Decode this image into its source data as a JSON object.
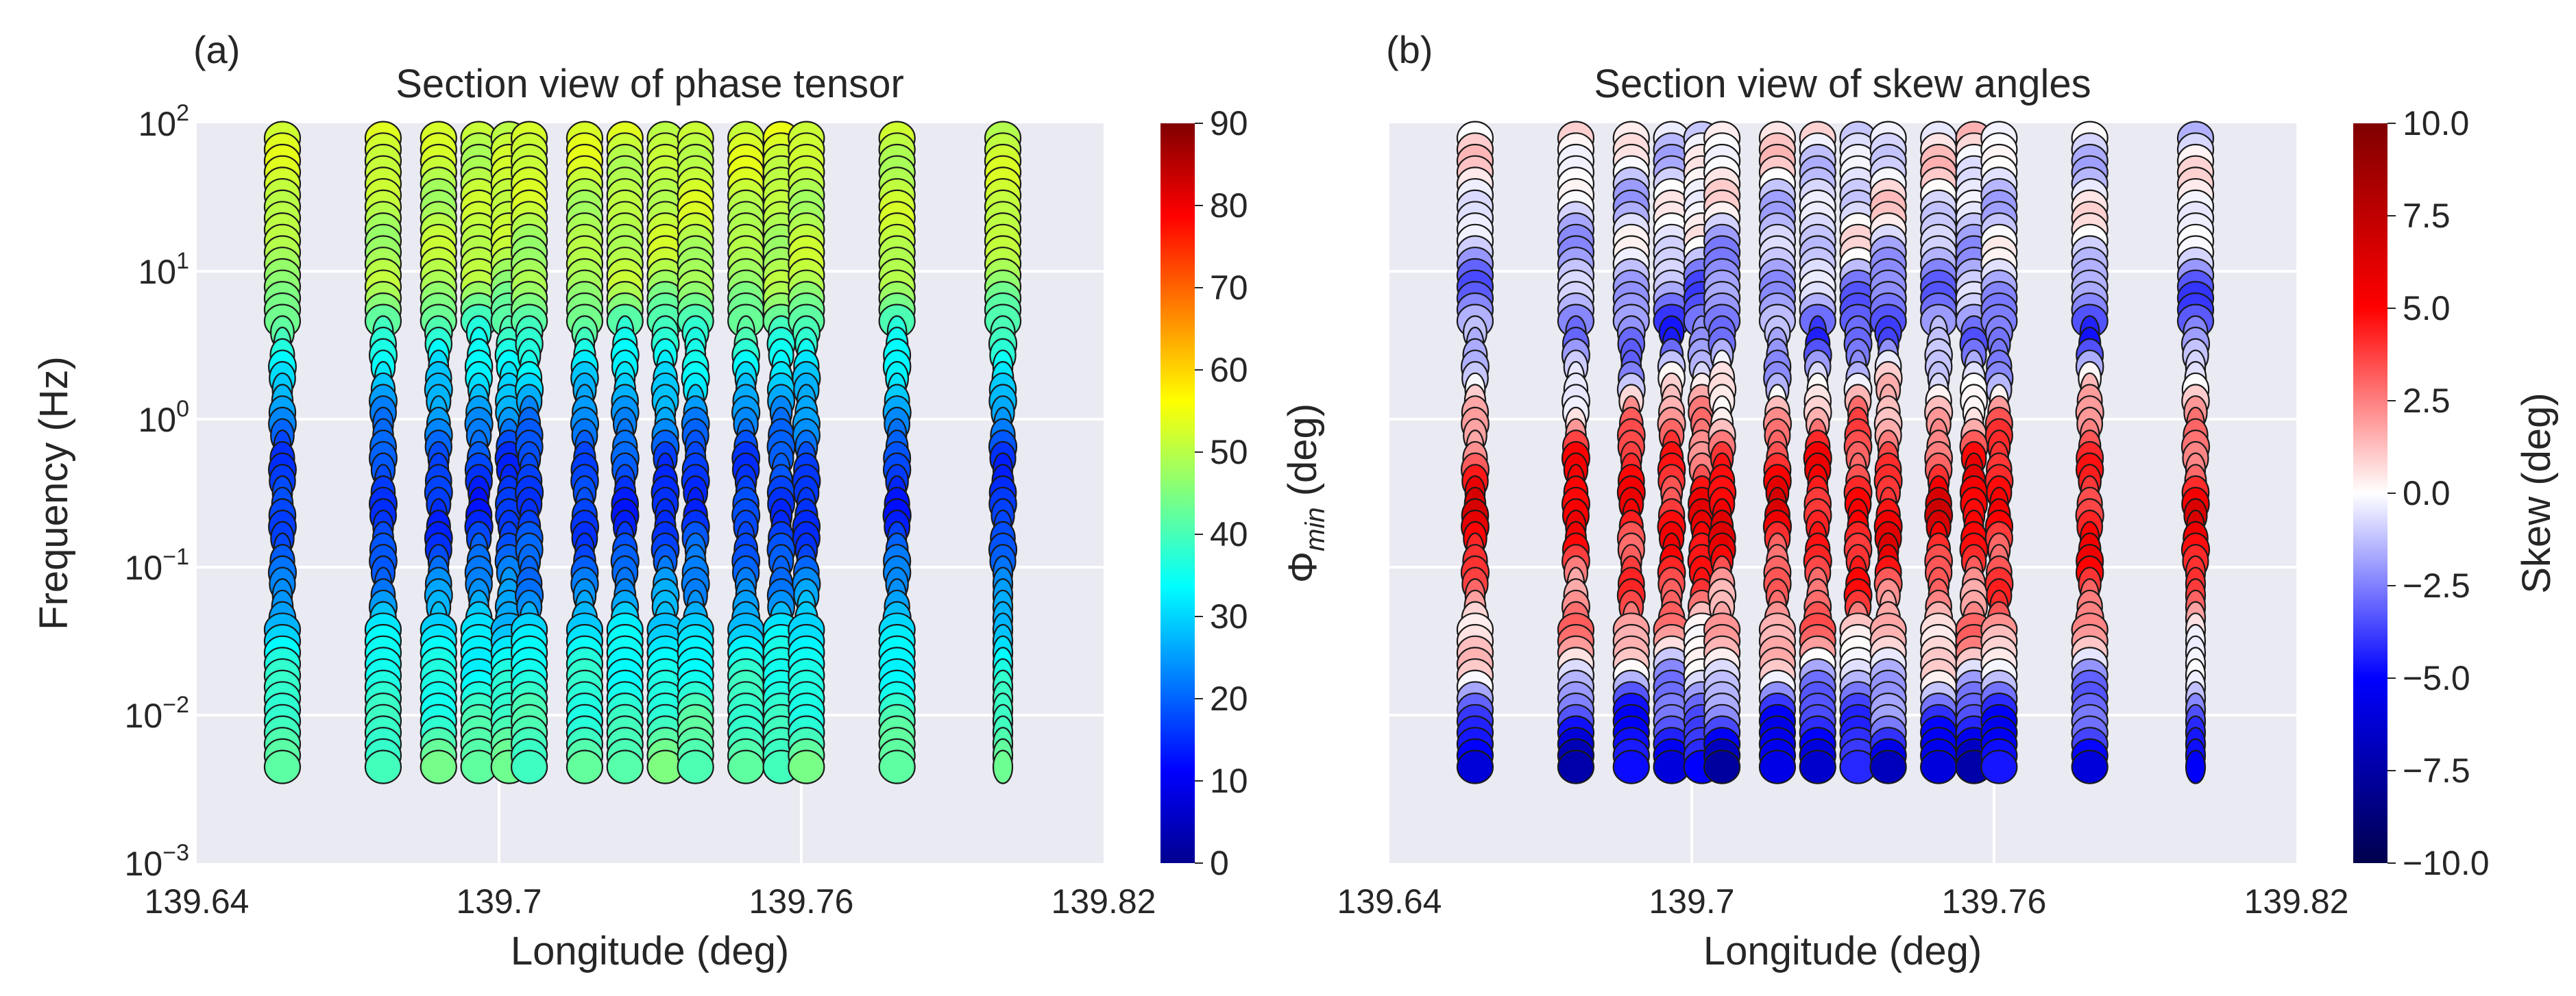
{
  "chart_data": [
    {
      "panel": "(a)",
      "type": "scatter",
      "title": "Section view of phase tensor",
      "xlabel": "Longitude (deg)",
      "ylabel": "Frequency (Hz)",
      "xlim": [
        139.64,
        139.82
      ],
      "ylim_log10": [
        -3,
        2
      ],
      "x_tick_labels": [
        "139.64",
        "139.7",
        "139.76",
        "139.82"
      ],
      "y_tick_labels": [
        {
          "base": "10",
          "exp": "2"
        },
        {
          "base": "10",
          "exp": "1"
        },
        {
          "base": "10",
          "exp": "0"
        },
        {
          "base": "10",
          "exp": "−1"
        },
        {
          "base": "10",
          "exp": "−2"
        },
        {
          "base": "10",
          "exp": "−3"
        }
      ],
      "stations_longitude": [
        139.657,
        139.677,
        139.688,
        139.696,
        139.702,
        139.706,
        139.717,
        139.725,
        139.733,
        139.739,
        139.749,
        139.756,
        139.761,
        139.779,
        139.8
      ],
      "log10_freq_range": [
        -2.35,
        1.9
      ],
      "series_name": "Phi_min",
      "phi_min_profile_deg": [
        {
          "log10_f": 1.9,
          "value": 52
        },
        {
          "log10_f": 0.9,
          "value": 49
        },
        {
          "log10_f": 0.6,
          "value": 40
        },
        {
          "log10_f": 0.3,
          "value": 32
        },
        {
          "log10_f": 0.0,
          "value": 24
        },
        {
          "log10_f": -0.3,
          "value": 17
        },
        {
          "log10_f": -0.7,
          "value": 15
        },
        {
          "log10_f": -1.2,
          "value": 24
        },
        {
          "log10_f": -1.6,
          "value": 34
        },
        {
          "log10_f": -2.35,
          "value": 42
        }
      ],
      "colorbar": {
        "label_main": "Φ",
        "label_sub": "min",
        "label_unit": " (deg)",
        "range": [
          0,
          90
        ],
        "colormap": "jet",
        "tick_labels": [
          "0",
          "10",
          "20",
          "30",
          "40",
          "50",
          "60",
          "70",
          "80",
          "90"
        ]
      }
    },
    {
      "panel": "(b)",
      "type": "scatter",
      "title": "Section view of skew angles",
      "xlabel": "Longitude (deg)",
      "xlim": [
        139.64,
        139.82
      ],
      "ylim_log10": [
        -3,
        2
      ],
      "x_tick_labels": [
        "139.64",
        "139.7",
        "139.76",
        "139.82"
      ],
      "stations_longitude": [
        139.657,
        139.677,
        139.688,
        139.696,
        139.702,
        139.706,
        139.717,
        139.725,
        139.733,
        139.739,
        139.749,
        139.756,
        139.761,
        139.779,
        139.8
      ],
      "log10_freq_range": [
        -2.35,
        1.9
      ],
      "series_name": "Skew",
      "skew_profile_deg": [
        {
          "log10_f": 1.9,
          "value": 0.0
        },
        {
          "log10_f": 1.2,
          "value": -0.6
        },
        {
          "log10_f": 0.9,
          "value": -2.0
        },
        {
          "log10_f": 0.5,
          "value": -3.0
        },
        {
          "log10_f": 0.1,
          "value": 1.0
        },
        {
          "log10_f": -0.3,
          "value": 4.0
        },
        {
          "log10_f": -0.7,
          "value": 5.5
        },
        {
          "log10_f": -1.1,
          "value": 3.5
        },
        {
          "log10_f": -1.6,
          "value": 1.0
        },
        {
          "log10_f": -1.9,
          "value": -2.5
        },
        {
          "log10_f": -2.35,
          "value": -6.0
        }
      ],
      "colorbar": {
        "label": "Skew (deg)",
        "range": [
          -10,
          10
        ],
        "colormap": "seismic",
        "tick_labels": [
          "−10.0",
          "−7.5",
          "−5.0",
          "−2.5",
          "0.0",
          "2.5",
          "5.0",
          "7.5",
          "10.0"
        ]
      }
    }
  ],
  "colors": {
    "axes_background": "#eaeaf2",
    "grid": "#ffffff",
    "text": "#262626",
    "marker_edge": "#1a1a1a"
  }
}
